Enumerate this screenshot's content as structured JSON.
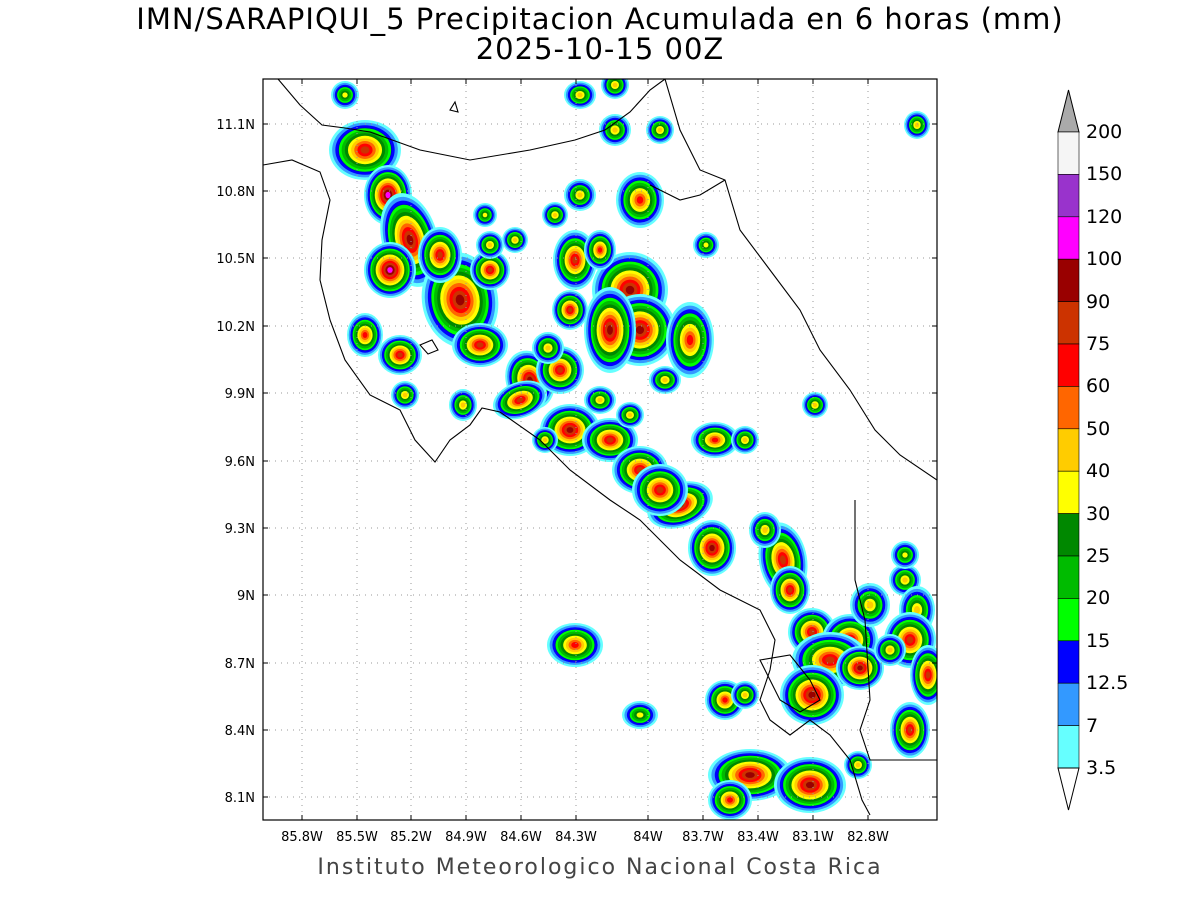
{
  "title_line1": "IMN/SARAPIQUI_5 Precipitacion Acumulada en 6 horas (mm)",
  "title_line2": "2025-10-15 00Z",
  "footer": "Instituto Meteorologico Nacional Costa Rica",
  "map": {
    "variable": "precipitation accumulated 6 h",
    "units": "mm",
    "lon_range": [
      -86.0,
      -82.55
    ],
    "lat_range": [
      8.0,
      11.3
    ],
    "x_ticks": [
      "85.8W",
      "85.5W",
      "85.2W",
      "84.9W",
      "84.6W",
      "84.3W",
      "84W",
      "83.7W",
      "83.4W",
      "83.1W",
      "82.8W"
    ],
    "y_ticks": [
      "11.1N",
      "10.8N",
      "10.5N",
      "10.2N",
      "9.9N",
      "9.6N",
      "9.3N",
      "9N",
      "8.7N",
      "8.4N",
      "8.1N"
    ],
    "gridlines": "dotted"
  },
  "colorbar": {
    "labels": [
      "200",
      "150",
      "120",
      "100",
      "90",
      "75",
      "60",
      "50",
      "40",
      "30",
      "25",
      "20",
      "15",
      "12.5",
      "7",
      "3.5"
    ],
    "colors": [
      "#aaaaaa",
      "#f5f5f5",
      "#9933cc",
      "#ff00ff",
      "#990000",
      "#cc3300",
      "#ff0000",
      "#ff6600",
      "#ffcc00",
      "#ffff00",
      "#008800",
      "#00bb00",
      "#00ff00",
      "#0000ff",
      "#3399ff",
      "#66ffff"
    ],
    "over_color": "#aaaaaa",
    "under_color": "#ffffff"
  }
}
